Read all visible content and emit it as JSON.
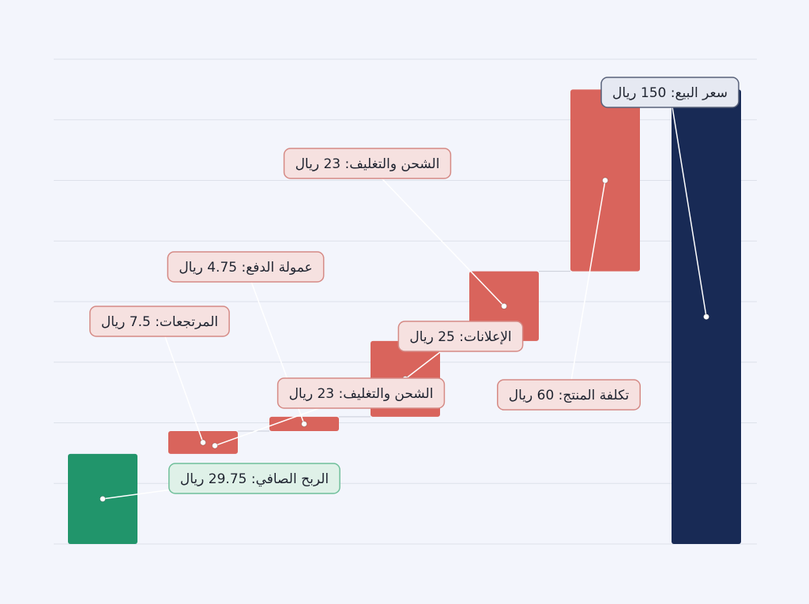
{
  "chart_data": {
    "type": "waterfall",
    "values": [
      150,
      60,
      23,
      25,
      4.75,
      7.5,
      29.75
    ],
    "measure": [
      "absolute",
      "decrease",
      "decrease",
      "decrease",
      "decrease",
      "decrease",
      "total"
    ],
    "value_labels": [
      "سعر البيع: 150 ريال",
      "تكلفة المنتج: 60 ريال",
      "الشحن والتغليف: 23 ريال",
      "الإعلانات: 25 ريال",
      "عمولة الدفع: 4.75 ريال",
      "المرتجعات: 7.5 ريال",
      "الربح الصافي: 29.75 ريال"
    ],
    "colors": [
      "#182a55",
      "#d9645c",
      "#d9645c",
      "#d9645c",
      "#d9645c",
      "#d9645c",
      "#21956b"
    ],
    "annotations": [
      "الشحن والتغليف: 23 ريال"
    ],
    "ylim": [
      0,
      160
    ],
    "yticks": [
      0,
      20,
      40,
      60,
      80,
      100,
      120,
      140,
      160
    ],
    "grid": true
  }
}
